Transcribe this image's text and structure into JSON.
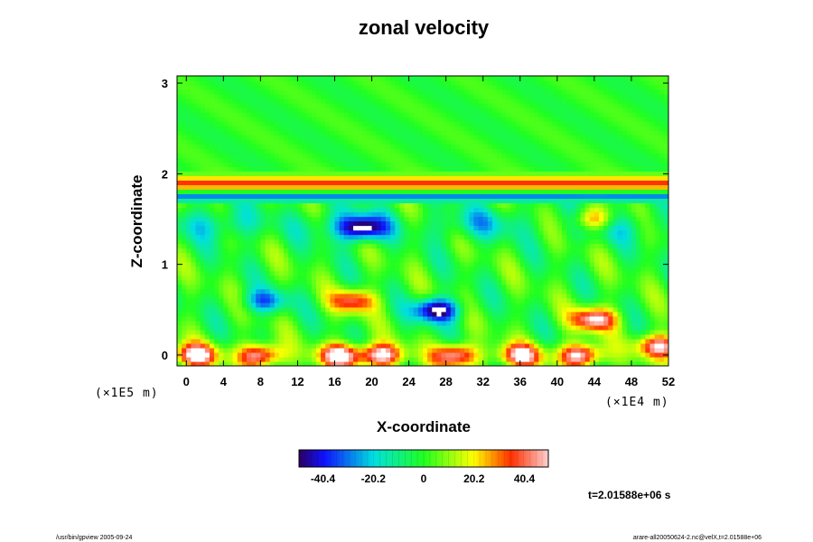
{
  "chart_data": {
    "type": "heatmap",
    "title": "zonal velocity",
    "xlabel": "X-coordinate",
    "ylabel": "Z-coordinate",
    "x_ticks": [
      "0",
      "4",
      "8",
      "12",
      "16",
      "20",
      "24",
      "28",
      "32",
      "36",
      "40",
      "44",
      "48",
      "52"
    ],
    "y_ticks": [
      "0",
      "1",
      "2",
      "3"
    ],
    "xlim": [
      -1,
      52
    ],
    "ylim": [
      -0.12,
      3.08
    ],
    "x_scale_note": "(×1E4 m)",
    "y_scale_note": "(×1E5 m)",
    "colorbar": {
      "range": [
        -50,
        50
      ],
      "ticks": [
        "-40.4",
        "-20.2",
        "0",
        "20.2",
        "40.4"
      ],
      "colormap": "rainbow",
      "out_of_range_color": "#ffffff"
    },
    "features": [
      {
        "kind": "jet",
        "z": 1.9,
        "value": 35
      },
      {
        "kind": "band",
        "z": 1.75,
        "value": -30
      },
      {
        "kind": "blob",
        "x": 18,
        "z": 0.6,
        "value": 40
      },
      {
        "kind": "blob",
        "x": 8.5,
        "z": 0.6,
        "value": -30
      },
      {
        "kind": "blob",
        "x": 19,
        "z": 1.4,
        "value": -45
      },
      {
        "kind": "blob",
        "x": 1,
        "z": 0.0,
        "value": 55
      },
      {
        "kind": "blob",
        "x": 8,
        "z": 0.0,
        "value": 52
      },
      {
        "kind": "blob",
        "x": 16.5,
        "z": 0.0,
        "value": 55
      },
      {
        "kind": "blob",
        "x": 21,
        "z": 0.0,
        "value": 55
      },
      {
        "kind": "blob",
        "x": 29,
        "z": 0.0,
        "value": 52
      },
      {
        "kind": "blob",
        "x": 36,
        "z": 0.0,
        "value": 50
      },
      {
        "kind": "blob",
        "x": 42.5,
        "z": 0.0,
        "value": 55
      },
      {
        "kind": "blob",
        "x": 44,
        "z": 0.4,
        "value": 52
      },
      {
        "kind": "blob",
        "x": 51,
        "z": 0.1,
        "value": 52
      },
      {
        "kind": "blob",
        "x": 27,
        "z": 0.5,
        "value": -55
      },
      {
        "kind": "blob",
        "x": 44,
        "z": 1.5,
        "value": 40
      }
    ]
  },
  "footer": {
    "left": "/usr/bin/gpview 2005-09-24",
    "right": "arare-all20050624-2.nc@velX,t=2.01588e+06"
  },
  "time_label": "t=2.01588e+06 s"
}
